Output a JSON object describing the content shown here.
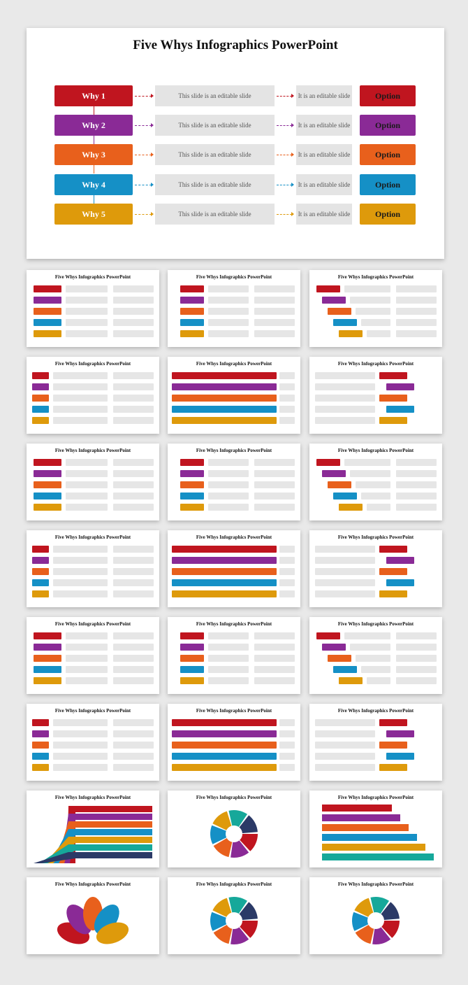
{
  "main": {
    "title": "Five Whys Infographics PowerPoint",
    "rows": [
      {
        "why": "Why 1",
        "mid": "This slide is an editable slide",
        "right": "It is an editable slide",
        "option": "Option",
        "color": "#c0151f"
      },
      {
        "why": "Why 2",
        "mid": "This slide is an editable slide",
        "right": "It is an editable slide",
        "option": "Option",
        "color": "#8a2a96"
      },
      {
        "why": "Why 3",
        "mid": "This slide is an editable slide",
        "right": "It is an editable slide",
        "option": "Option",
        "color": "#e8601c"
      },
      {
        "why": "Why 4",
        "mid": "This slide is an editable slide",
        "right": "It is an editable slide",
        "option": "Option",
        "color": "#1590c6"
      },
      {
        "why": "Why 5",
        "mid": "This slide is an editable slide",
        "right": "It is an editable slide",
        "option": "Option",
        "color": "#de9a0b"
      }
    ]
  },
  "thumbs": {
    "title": "Five Whys Infographics PowerPoint",
    "count": 24
  },
  "colors": {
    "red": "#c0151f",
    "purple": "#8a2a96",
    "orange": "#e8601c",
    "blue": "#1590c6",
    "gold": "#de9a0b",
    "teal": "#16a89a",
    "grey": "#e6e6e6"
  }
}
